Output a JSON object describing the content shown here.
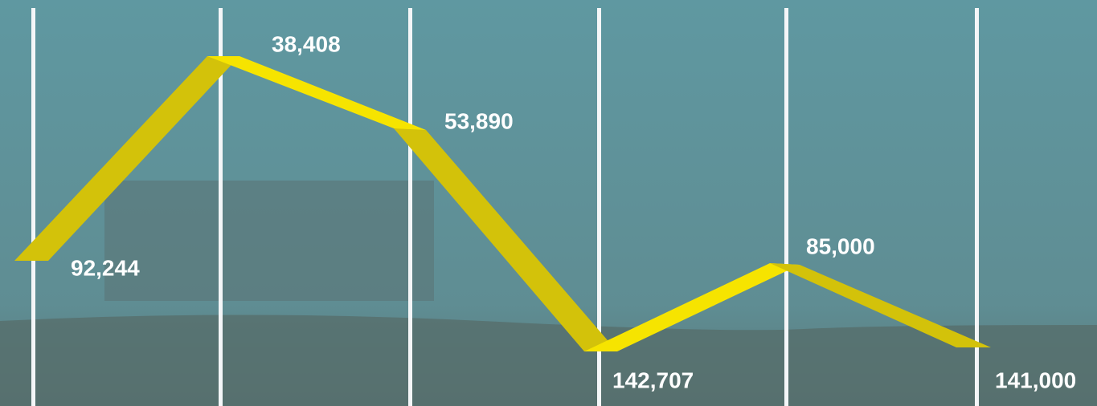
{
  "labels": [
    "92,244",
    "38,408",
    "53,890",
    "142,707",
    "85,000",
    "141,000"
  ]
}
